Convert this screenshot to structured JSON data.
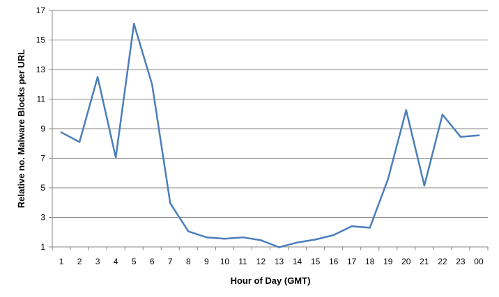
{
  "chart_data": {
    "type": "line",
    "title": "",
    "xlabel": "Hour of Day (GMT)",
    "ylabel": "Relative no. Malware Blocks per URL",
    "categories": [
      "1",
      "2",
      "3",
      "4",
      "5",
      "6",
      "7",
      "8",
      "9",
      "10",
      "11",
      "12",
      "13",
      "14",
      "15",
      "16",
      "17",
      "18",
      "19",
      "20",
      "21",
      "22",
      "23",
      "00"
    ],
    "series": [
      {
        "name": "",
        "color": "#4a7ebb",
        "values": [
          8.75,
          8.1,
          12.5,
          7.05,
          16.1,
          12.0,
          3.95,
          2.05,
          1.65,
          1.55,
          1.65,
          1.45,
          0.97,
          1.3,
          1.5,
          1.8,
          2.4,
          2.3,
          5.6,
          10.25,
          5.15,
          9.95,
          8.45,
          8.55
        ]
      }
    ],
    "ylim": [
      1,
      17
    ],
    "yticks": [
      "1",
      "3",
      "5",
      "7",
      "9",
      "11",
      "13",
      "15",
      "17"
    ],
    "grid": true,
    "gridline_color": "#868686",
    "legend": "none"
  }
}
